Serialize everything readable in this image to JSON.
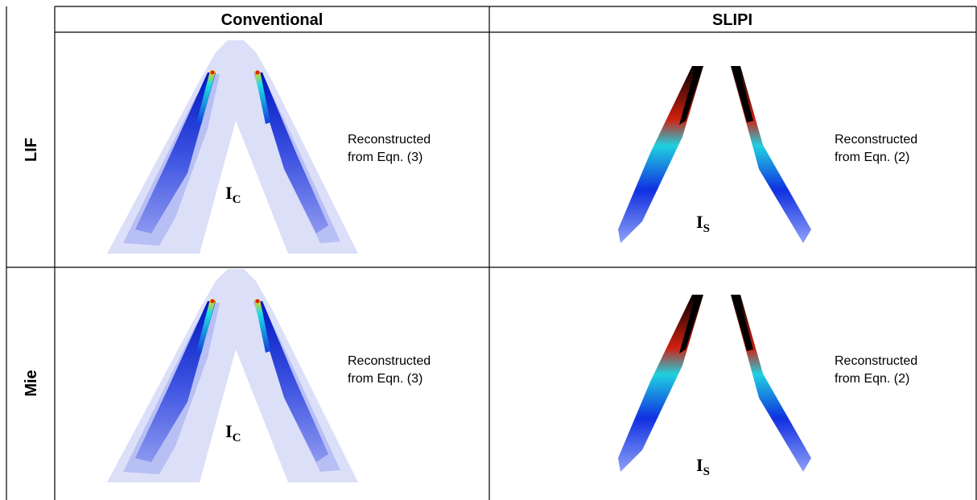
{
  "table": {
    "columns": [
      "Conventional",
      "SLIPI"
    ],
    "rows": [
      {
        "label": "LIF",
        "cells": [
          {
            "note": [
              "Reconstructed",
              "from Eqn. (3)"
            ],
            "symbol": "I",
            "subscript": "C"
          },
          {
            "note": [
              "Reconstructed",
              "from Eqn. (2)"
            ],
            "symbol": "I",
            "subscript": "S"
          }
        ]
      },
      {
        "label": "Mie",
        "cells": [
          {
            "note": [
              "Reconstructed",
              "from Eqn. (3)"
            ],
            "symbol": "I",
            "subscript": "C"
          },
          {
            "note": [
              "Reconstructed",
              "from Eqn. (2)"
            ],
            "symbol": "I",
            "subscript": "S"
          }
        ]
      }
    ]
  }
}
